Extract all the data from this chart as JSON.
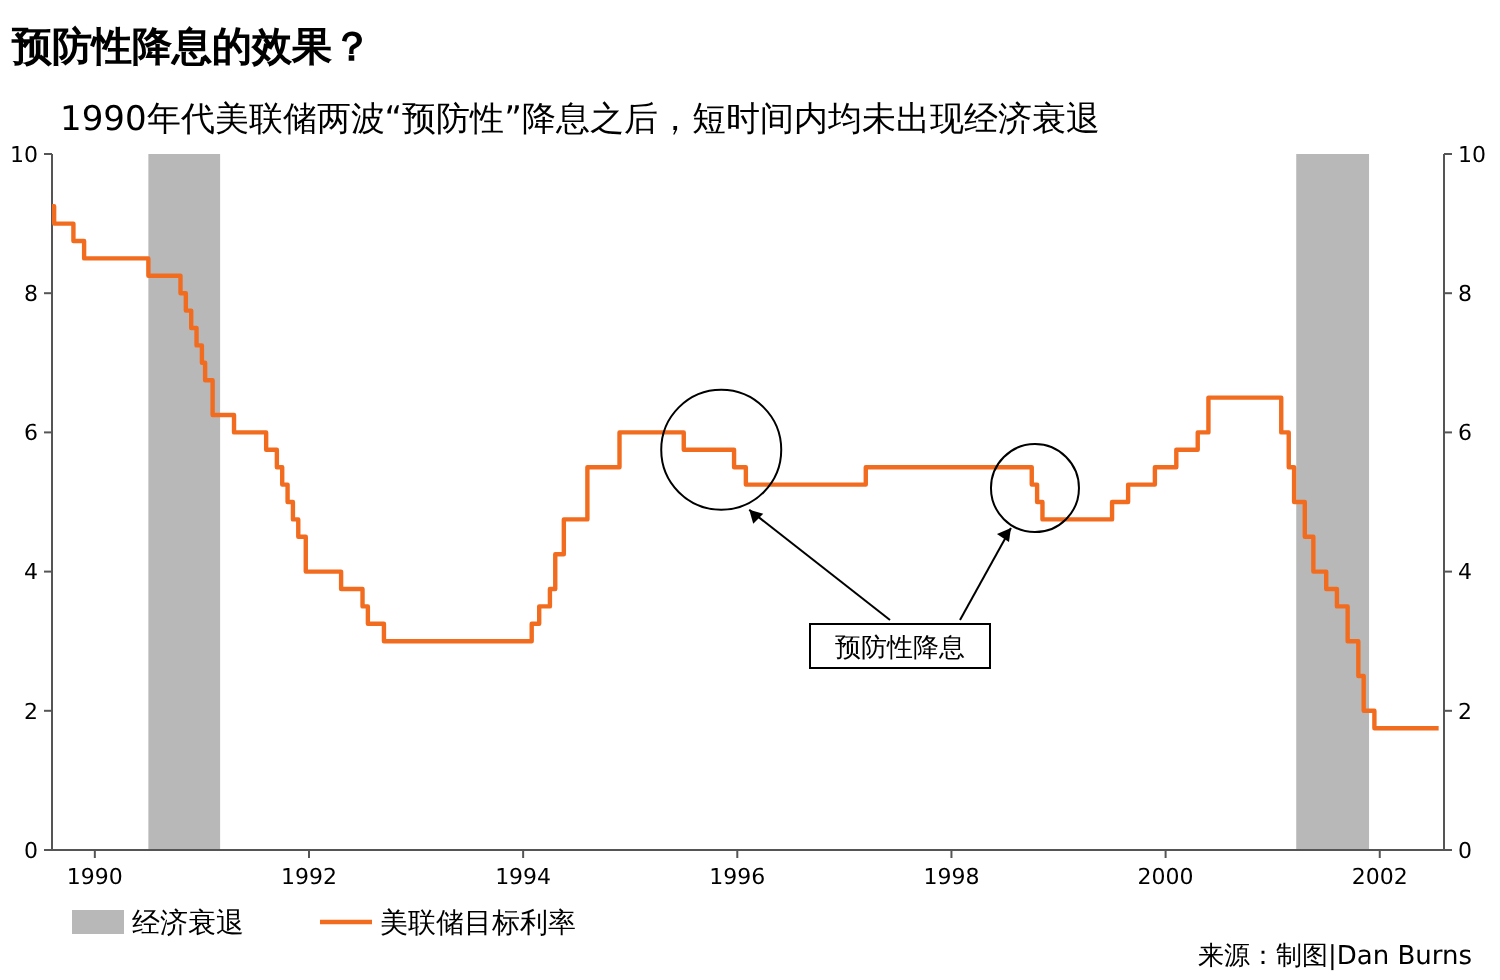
{
  "chart_data": {
    "type": "step",
    "title": "预防性降息的效果？",
    "subtitle": "1990年代美联储两波“预防性”降息之后，短时间内均未出现经济衰退",
    "x": [
      1989.6,
      1989.62,
      1989.8,
      1989.9,
      1990.5,
      1990.8,
      1990.85,
      1990.9,
      1990.95,
      1991.0,
      1991.03,
      1991.1,
      1991.3,
      1991.6,
      1991.7,
      1991.75,
      1991.8,
      1991.85,
      1991.9,
      1991.97,
      1992.3,
      1992.5,
      1992.55,
      1992.7,
      1994.08,
      1994.15,
      1994.25,
      1994.3,
      1994.38,
      1994.6,
      1994.9,
      1995.1,
      1995.5,
      1995.97,
      1996.08,
      1997.2,
      1998.75,
      1998.8,
      1998.85,
      1998.9,
      1999.5,
      1999.65,
      1999.9,
      2000.1,
      2000.3,
      2000.4,
      2001.0,
      2001.08,
      2001.15,
      2001.2,
      2001.3,
      2001.38,
      2001.5,
      2001.6,
      2001.7,
      2001.8,
      2001.85,
      2001.95,
      2002.55
    ],
    "series": [
      {
        "name": "美联储目标利率",
        "color": "#f26c1f",
        "values": [
          9.25,
          9,
          8.75,
          8.5,
          8.25,
          8,
          7.75,
          7.5,
          7.25,
          7,
          6.75,
          6.25,
          6,
          5.75,
          5.5,
          5.25,
          5,
          4.75,
          4.5,
          4,
          3.75,
          3.5,
          3.25,
          3,
          3.25,
          3.5,
          3.75,
          4.25,
          4.75,
          5.5,
          6,
          6,
          5.75,
          5.5,
          5.25,
          5.5,
          5.25,
          5,
          4.75,
          4.75,
          5,
          5.25,
          5.5,
          5.75,
          6,
          6.5,
          6.5,
          6,
          5.5,
          5,
          4.5,
          4,
          3.75,
          3.5,
          3,
          2.5,
          2,
          1.75,
          1.75
        ]
      }
    ],
    "xlim": [
      1989.6,
      2002.6
    ],
    "xticks": [
      {
        "value": 1990,
        "label": "1990"
      },
      {
        "value": 1992,
        "label": "1992"
      },
      {
        "value": 1994,
        "label": "1994"
      },
      {
        "value": 1996,
        "label": "1996"
      },
      {
        "value": 1998,
        "label": "1998"
      },
      {
        "value": 2000,
        "label": "2000"
      },
      {
        "value": 2002,
        "label": "2002"
      }
    ],
    "ylim": [
      0,
      10
    ],
    "yticks": [
      0,
      2,
      4,
      6,
      8,
      10
    ],
    "y2lim": [
      0,
      10
    ],
    "y2ticks": [
      0,
      2,
      4,
      6,
      8,
      10
    ],
    "bands": [
      {
        "axis": "x",
        "from": 1990.5,
        "to": 1991.17,
        "label": "经济衰退",
        "color": "#b8b8b8"
      },
      {
        "axis": "x",
        "from": 2001.22,
        "to": 2001.9,
        "color": "#b8b8b8"
      }
    ],
    "annotations": [
      "预防性降息",
      "来源：制图|Dan Burns"
    ],
    "legend": "bottom left"
  }
}
